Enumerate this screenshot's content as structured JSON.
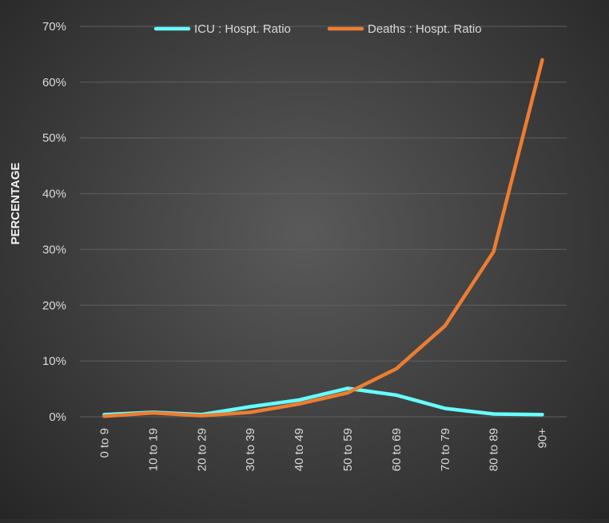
{
  "chart_data": {
    "type": "line",
    "title": "",
    "xlabel": "",
    "ylabel": "PERCENTAGE",
    "categories": [
      "0 to 9",
      "10 to 19",
      "20 to 29",
      "30 to 39",
      "40 to 49",
      "50 to 59",
      "60 to 69",
      "70 to 79",
      "80 to 89",
      "90+"
    ],
    "series": [
      {
        "name": "ICU : Hospt. Ratio",
        "color": "#66ffff",
        "values": [
          0.4,
          0.8,
          0.4,
          1.8,
          3.0,
          5.1,
          3.9,
          1.5,
          0.5,
          0.4
        ]
      },
      {
        "name": "Deaths : Hospt. Ratio",
        "color": "#ed7d31",
        "values": [
          0.1,
          0.7,
          0.2,
          0.8,
          2.3,
          4.3,
          8.6,
          16.3,
          29.6,
          64.0
        ]
      }
    ],
    "ylim": [
      0,
      70
    ],
    "yticks": [
      "0%",
      "10%",
      "20%",
      "30%",
      "40%",
      "50%",
      "60%",
      "70%"
    ],
    "grid": true,
    "legend_position": "top"
  }
}
